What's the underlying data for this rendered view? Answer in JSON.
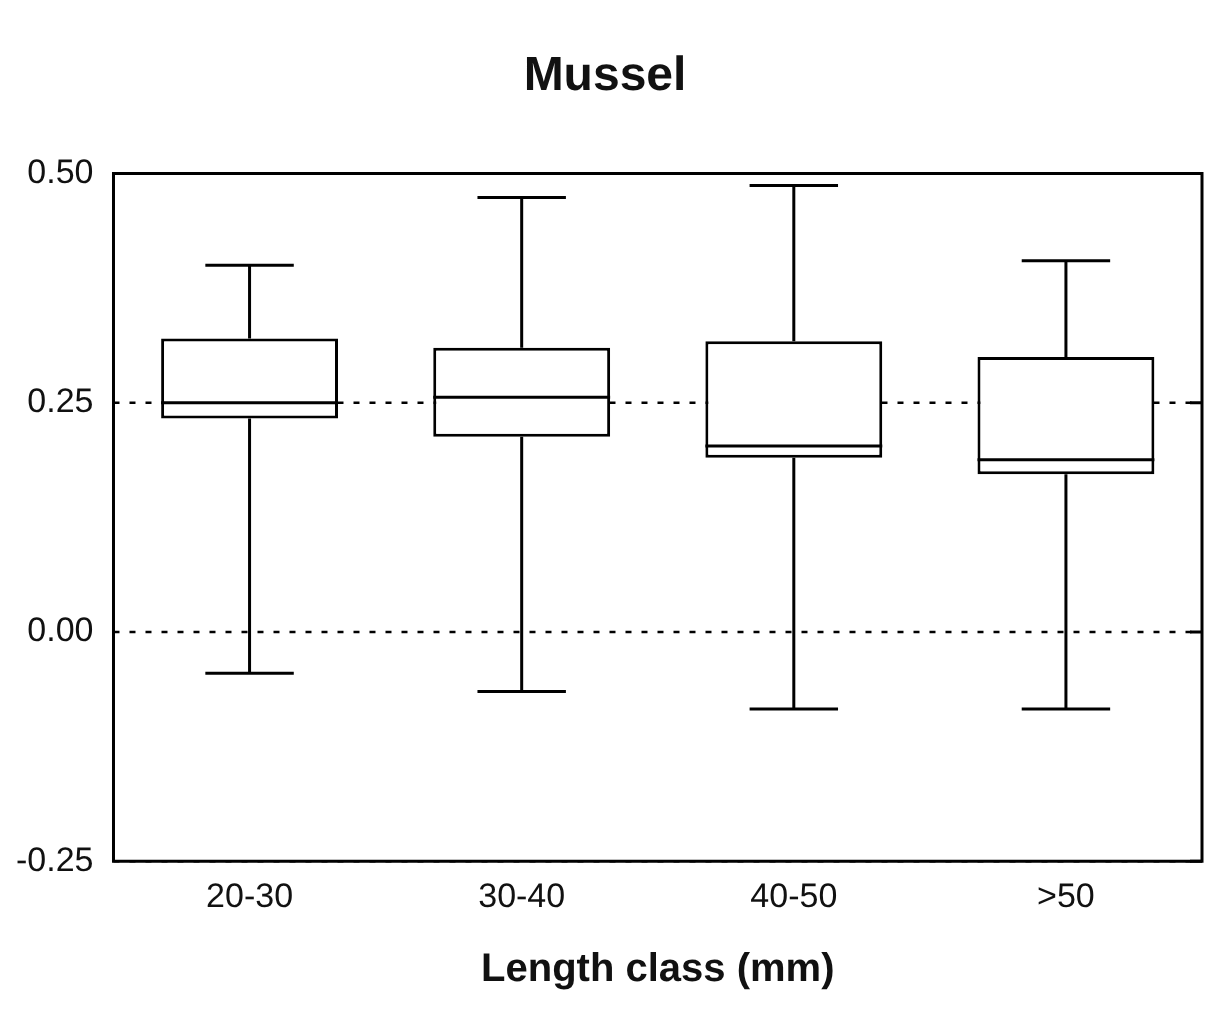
{
  "chart_data": {
    "type": "box",
    "title": "Mussel",
    "xlabel": "Length class (mm)",
    "categories": [
      "20-30",
      "30-40",
      "40-50",
      ">50"
    ],
    "boxes": [
      {
        "low": -0.045,
        "q1": 0.233,
        "median": 0.25,
        "q3": 0.32,
        "high": 0.4
      },
      {
        "low": -0.065,
        "q1": 0.213,
        "median": 0.256,
        "q3": 0.31,
        "high": 0.474
      },
      {
        "low": -0.084,
        "q1": 0.19,
        "median": 0.203,
        "q3": 0.317,
        "high": 0.487
      },
      {
        "low": -0.084,
        "q1": 0.172,
        "median": 0.188,
        "q3": 0.3,
        "high": 0.405
      }
    ],
    "ylim": [
      -0.25,
      0.5
    ],
    "yticks": [
      {
        "value": -0.25,
        "label": "-0.25"
      },
      {
        "value": 0,
        "label": "0.00"
      },
      {
        "value": 0.25,
        "label": "0.25"
      },
      {
        "value": 0.5,
        "label": "0.50"
      }
    ],
    "grid": "y",
    "line_style": "dotted"
  }
}
